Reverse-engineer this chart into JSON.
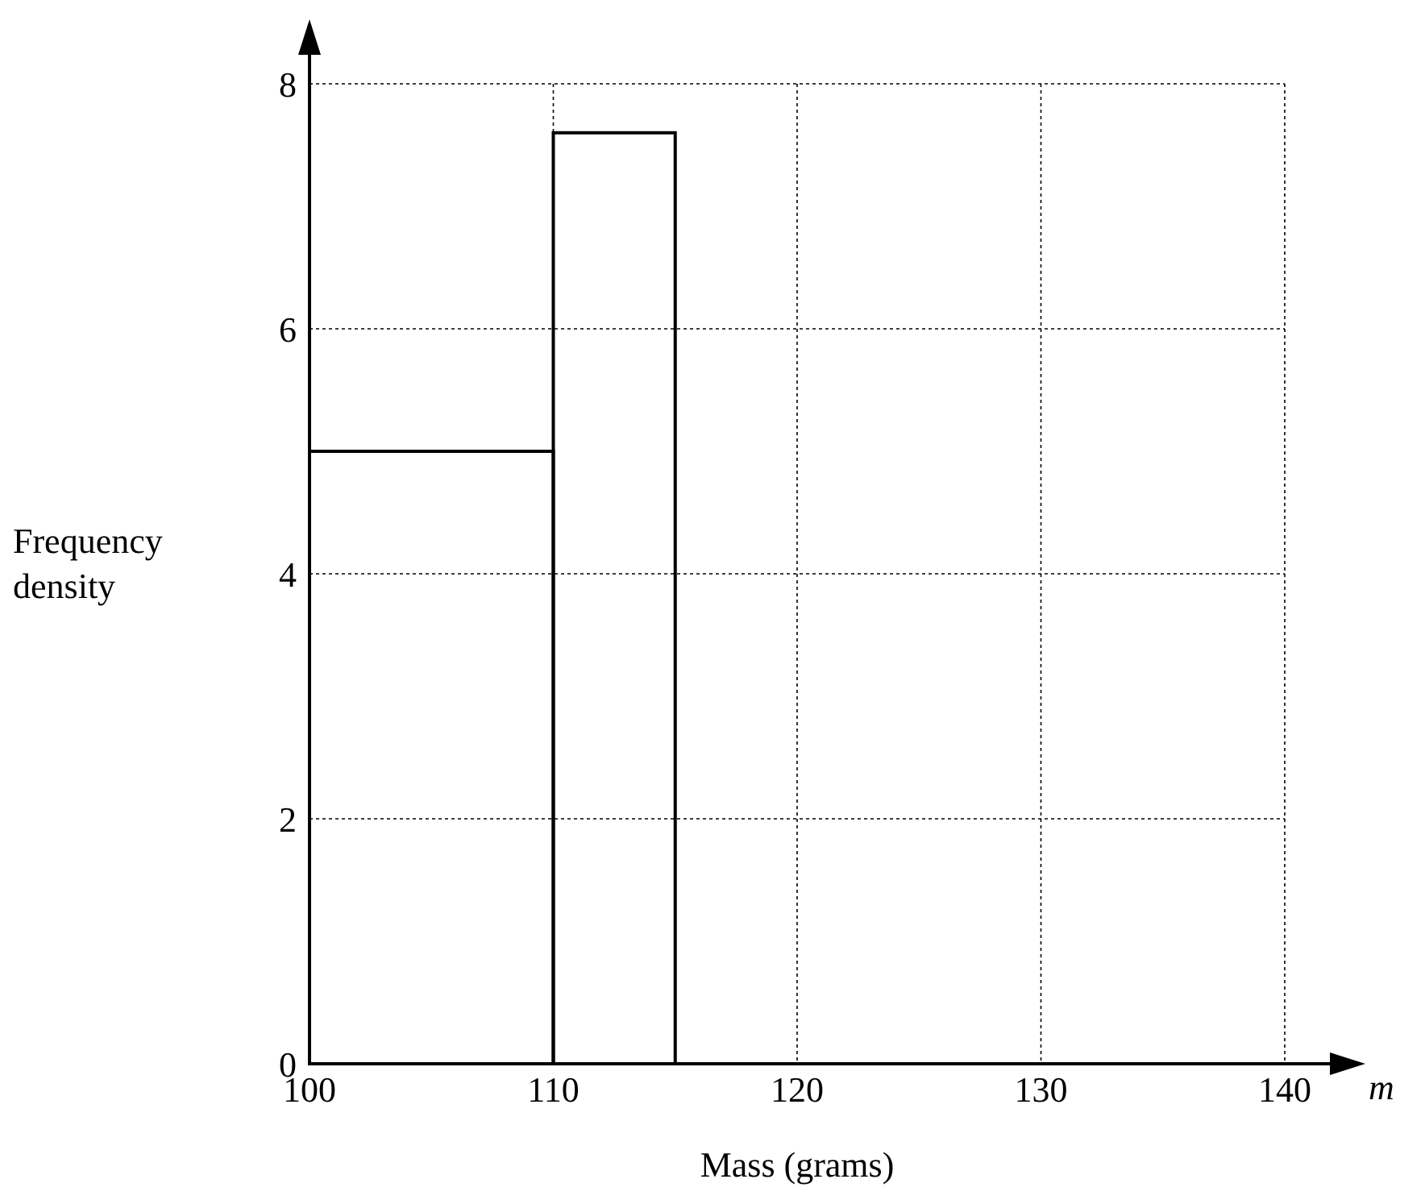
{
  "chart_data": {
    "type": "histogram",
    "xlabel": "Mass (grams)",
    "ylabel": "Frequency density",
    "bins": [
      100,
      110,
      115
    ],
    "values": [
      5,
      7.6
    ],
    "color": "#000000",
    "xlim": [
      100,
      140
    ],
    "xticks": [
      100,
      110,
      120,
      130,
      140
    ],
    "ylim": [
      0,
      8
    ],
    "yticks": [
      0,
      2,
      4,
      6,
      8
    ],
    "grid": true,
    "annotations": [
      "m"
    ]
  }
}
